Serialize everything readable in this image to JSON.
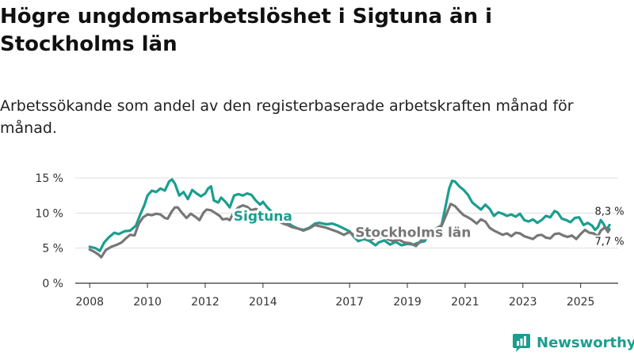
{
  "title": "Högre ungdomsarbetslöshet i Sigtuna än i Stockholms län",
  "subtitle": "Arbetssökande som andel av den registerbaserade arbetskraften månad för månad.",
  "brand": {
    "name": "Newsworthy",
    "icon": "newsworthy-logo-icon"
  },
  "colors": {
    "sigtuna": "#1a9e8f",
    "stockholm": "#777777",
    "grid": "#dddddd",
    "axis": "#333333"
  },
  "chart_data": {
    "type": "line",
    "title": "Högre ungdomsarbetslöshet i Sigtuna än i Stockholms län",
    "xlabel": "",
    "ylabel": "",
    "xlim": [
      2007.5,
      2026.3
    ],
    "ylim": [
      0,
      15
    ],
    "yticks": [
      0,
      5,
      10,
      15
    ],
    "ytick_labels": [
      "0 %",
      "5 %",
      "10 %",
      "15 %"
    ],
    "xticks": [
      2008,
      2010,
      2012,
      2014,
      2017,
      2019,
      2021,
      2023,
      2025
    ],
    "xtick_labels": [
      "2008",
      "2010",
      "2012",
      "2014",
      "2017",
      "2019",
      "2021",
      "2023",
      "2025"
    ],
    "grid": true,
    "series": [
      {
        "name": "Sigtuna",
        "label": "Sigtuna",
        "end_label": "8,3 %",
        "color": "#1a9e8f",
        "points": [
          [
            2008.0,
            5.2
          ],
          [
            2008.2,
            5.0
          ],
          [
            2008.35,
            4.6
          ],
          [
            2008.5,
            5.8
          ],
          [
            2008.65,
            6.5
          ],
          [
            2008.85,
            7.2
          ],
          [
            2009.0,
            7.0
          ],
          [
            2009.2,
            7.4
          ],
          [
            2009.4,
            7.5
          ],
          [
            2009.6,
            8.2
          ],
          [
            2009.75,
            9.8
          ],
          [
            2009.9,
            11.2
          ],
          [
            2010.0,
            12.5
          ],
          [
            2010.15,
            13.2
          ],
          [
            2010.3,
            13.0
          ],
          [
            2010.45,
            13.5
          ],
          [
            2010.6,
            13.2
          ],
          [
            2010.75,
            14.5
          ],
          [
            2010.85,
            14.8
          ],
          [
            2010.95,
            14.2
          ],
          [
            2011.1,
            12.5
          ],
          [
            2011.25,
            13.0
          ],
          [
            2011.4,
            12.0
          ],
          [
            2011.55,
            13.3
          ],
          [
            2011.7,
            12.8
          ],
          [
            2011.85,
            12.4
          ],
          [
            2012.0,
            12.8
          ],
          [
            2012.1,
            13.5
          ],
          [
            2012.2,
            13.8
          ],
          [
            2012.3,
            11.8
          ],
          [
            2012.45,
            11.5
          ],
          [
            2012.55,
            12.2
          ],
          [
            2012.7,
            11.6
          ],
          [
            2012.85,
            10.8
          ],
          [
            2013.0,
            12.5
          ],
          [
            2013.15,
            12.7
          ],
          [
            2013.3,
            12.5
          ],
          [
            2013.45,
            12.8
          ],
          [
            2013.6,
            12.6
          ],
          [
            2013.75,
            11.8
          ],
          [
            2013.9,
            11.2
          ],
          [
            2014.0,
            11.6
          ],
          [
            2014.15,
            10.8
          ],
          [
            2014.3,
            10.2
          ],
          [
            2014.45,
            9.6
          ],
          [
            2014.6,
            9.0
          ],
          [
            2014.75,
            8.8
          ],
          [
            2014.9,
            8.5
          ],
          [
            2015.0,
            8.2
          ],
          [
            2015.2,
            7.8
          ],
          [
            2015.4,
            7.6
          ],
          [
            2015.6,
            7.9
          ],
          [
            2015.8,
            8.5
          ],
          [
            2015.95,
            8.6
          ],
          [
            2016.2,
            8.4
          ],
          [
            2016.4,
            8.5
          ],
          [
            2016.6,
            8.2
          ],
          [
            2016.8,
            7.8
          ],
          [
            2017.0,
            7.4
          ],
          [
            2017.15,
            6.6
          ],
          [
            2017.3,
            6.0
          ],
          [
            2017.5,
            6.3
          ],
          [
            2017.7,
            6.0
          ],
          [
            2017.9,
            5.4
          ],
          [
            2018.0,
            5.8
          ],
          [
            2018.2,
            6.1
          ],
          [
            2018.4,
            5.5
          ],
          [
            2018.6,
            5.9
          ],
          [
            2018.8,
            5.4
          ],
          [
            2019.0,
            5.6
          ],
          [
            2019.2,
            5.5
          ],
          [
            2019.4,
            5.8
          ],
          [
            2019.6,
            6.0
          ],
          [
            2019.8,
            7.5
          ],
          [
            2019.95,
            7.2
          ],
          [
            2020.15,
            7.6
          ],
          [
            2020.3,
            10.5
          ],
          [
            2020.45,
            13.5
          ],
          [
            2020.55,
            14.6
          ],
          [
            2020.65,
            14.5
          ],
          [
            2020.8,
            13.8
          ],
          [
            2020.95,
            13.3
          ],
          [
            2021.1,
            12.6
          ],
          [
            2021.25,
            11.5
          ],
          [
            2021.4,
            11.0
          ],
          [
            2021.55,
            10.5
          ],
          [
            2021.7,
            11.2
          ],
          [
            2021.85,
            10.6
          ],
          [
            2022.0,
            9.6
          ],
          [
            2022.15,
            10.1
          ],
          [
            2022.3,
            9.9
          ],
          [
            2022.45,
            9.6
          ],
          [
            2022.6,
            9.8
          ],
          [
            2022.75,
            9.5
          ],
          [
            2022.9,
            9.9
          ],
          [
            2023.05,
            9.0
          ],
          [
            2023.2,
            8.8
          ],
          [
            2023.35,
            9.1
          ],
          [
            2023.5,
            8.6
          ],
          [
            2023.65,
            9.0
          ],
          [
            2023.8,
            9.6
          ],
          [
            2023.95,
            9.4
          ],
          [
            2024.1,
            10.3
          ],
          [
            2024.2,
            10.1
          ],
          [
            2024.35,
            9.2
          ],
          [
            2024.5,
            9.0
          ],
          [
            2024.65,
            8.7
          ],
          [
            2024.8,
            9.3
          ],
          [
            2024.95,
            9.4
          ],
          [
            2025.1,
            8.3
          ],
          [
            2025.25,
            8.6
          ],
          [
            2025.4,
            8.2
          ],
          [
            2025.5,
            7.6
          ],
          [
            2025.6,
            8.0
          ],
          [
            2025.7,
            9.0
          ],
          [
            2025.8,
            8.4
          ],
          [
            2025.9,
            7.6
          ],
          [
            2026.0,
            8.3
          ]
        ]
      },
      {
        "name": "Stockholms län",
        "label": "Stockholms län",
        "end_label": "7,7 %",
        "color": "#777777",
        "points": [
          [
            2008.0,
            4.8
          ],
          [
            2008.15,
            4.5
          ],
          [
            2008.3,
            4.1
          ],
          [
            2008.4,
            3.7
          ],
          [
            2008.55,
            4.7
          ],
          [
            2008.75,
            5.2
          ],
          [
            2008.95,
            5.5
          ],
          [
            2009.1,
            5.8
          ],
          [
            2009.25,
            6.4
          ],
          [
            2009.4,
            6.9
          ],
          [
            2009.55,
            6.8
          ],
          [
            2009.7,
            8.5
          ],
          [
            2009.85,
            9.4
          ],
          [
            2010.0,
            9.8
          ],
          [
            2010.15,
            9.7
          ],
          [
            2010.3,
            9.9
          ],
          [
            2010.45,
            9.8
          ],
          [
            2010.6,
            9.3
          ],
          [
            2010.7,
            9.2
          ],
          [
            2010.85,
            10.3
          ],
          [
            2010.95,
            10.8
          ],
          [
            2011.05,
            10.8
          ],
          [
            2011.2,
            10.0
          ],
          [
            2011.35,
            9.3
          ],
          [
            2011.5,
            9.9
          ],
          [
            2011.65,
            9.5
          ],
          [
            2011.8,
            9.0
          ],
          [
            2011.95,
            10.1
          ],
          [
            2012.05,
            10.5
          ],
          [
            2012.2,
            10.4
          ],
          [
            2012.35,
            10.0
          ],
          [
            2012.5,
            9.6
          ],
          [
            2012.6,
            9.1
          ],
          [
            2012.75,
            9.2
          ],
          [
            2012.85,
            9.0
          ],
          [
            2013.0,
            10.2
          ],
          [
            2013.15,
            10.8
          ],
          [
            2013.3,
            11.1
          ],
          [
            2013.45,
            10.9
          ],
          [
            2013.6,
            10.4
          ],
          [
            2013.75,
            10.6
          ],
          [
            2013.9,
            10.3
          ],
          [
            2014.0,
            10.0
          ],
          [
            2014.2,
            9.6
          ],
          [
            2014.35,
            9.3
          ],
          [
            2014.5,
            8.9
          ],
          [
            2014.7,
            8.5
          ],
          [
            2014.85,
            8.3
          ],
          [
            2015.0,
            8.0
          ],
          [
            2015.2,
            7.8
          ],
          [
            2015.4,
            7.5
          ],
          [
            2015.6,
            7.8
          ],
          [
            2015.8,
            8.3
          ],
          [
            2016.0,
            8.1
          ],
          [
            2016.2,
            7.9
          ],
          [
            2016.4,
            7.6
          ],
          [
            2016.6,
            7.3
          ],
          [
            2016.8,
            6.9
          ],
          [
            2017.0,
            7.3
          ],
          [
            2017.2,
            6.7
          ],
          [
            2017.4,
            6.6
          ],
          [
            2017.6,
            6.5
          ],
          [
            2017.75,
            6.2
          ],
          [
            2017.9,
            6.5
          ],
          [
            2018.1,
            6.6
          ],
          [
            2018.3,
            6.3
          ],
          [
            2018.5,
            6.0
          ],
          [
            2018.7,
            6.2
          ],
          [
            2018.9,
            5.8
          ],
          [
            2019.1,
            5.7
          ],
          [
            2019.3,
            5.3
          ],
          [
            2019.5,
            6.2
          ],
          [
            2019.7,
            6.6
          ],
          [
            2019.85,
            7.4
          ],
          [
            2020.0,
            7.8
          ],
          [
            2020.2,
            8.3
          ],
          [
            2020.35,
            9.8
          ],
          [
            2020.5,
            11.3
          ],
          [
            2020.65,
            11.0
          ],
          [
            2020.8,
            10.3
          ],
          [
            2020.95,
            9.7
          ],
          [
            2021.1,
            9.4
          ],
          [
            2021.25,
            9.0
          ],
          [
            2021.4,
            8.5
          ],
          [
            2021.55,
            9.1
          ],
          [
            2021.7,
            8.8
          ],
          [
            2021.85,
            7.9
          ],
          [
            2022.0,
            7.5
          ],
          [
            2022.15,
            7.2
          ],
          [
            2022.3,
            6.9
          ],
          [
            2022.45,
            7.1
          ],
          [
            2022.6,
            6.7
          ],
          [
            2022.75,
            7.2
          ],
          [
            2022.9,
            7.1
          ],
          [
            2023.05,
            6.7
          ],
          [
            2023.2,
            6.5
          ],
          [
            2023.35,
            6.3
          ],
          [
            2023.5,
            6.8
          ],
          [
            2023.65,
            6.9
          ],
          [
            2023.8,
            6.5
          ],
          [
            2023.95,
            6.4
          ],
          [
            2024.1,
            7.0
          ],
          [
            2024.25,
            7.1
          ],
          [
            2024.4,
            6.8
          ],
          [
            2024.55,
            6.6
          ],
          [
            2024.7,
            6.8
          ],
          [
            2024.85,
            6.3
          ],
          [
            2025.0,
            7.0
          ],
          [
            2025.15,
            7.6
          ],
          [
            2025.3,
            7.2
          ],
          [
            2025.45,
            7.1
          ],
          [
            2025.6,
            6.7
          ],
          [
            2025.7,
            7.5
          ],
          [
            2025.85,
            8.0
          ],
          [
            2025.95,
            7.3
          ],
          [
            2026.0,
            7.7
          ]
        ]
      }
    ]
  }
}
